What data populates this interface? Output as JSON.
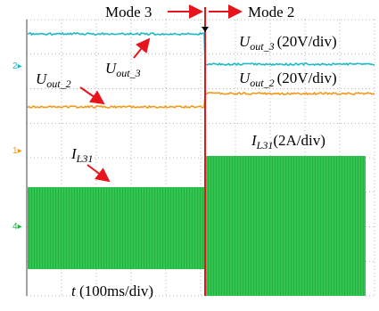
{
  "header": {
    "mode_from": "Mode 3",
    "mode_to": "Mode 2"
  },
  "channels": [
    "2",
    "1",
    "4"
  ],
  "traces": [
    {
      "symbol": "U",
      "subscript": "out_3",
      "scale": "(20V/div)"
    },
    {
      "symbol": "U",
      "subscript": "out_2",
      "scale": "(20V/div)"
    },
    {
      "symbol": "I",
      "subscript": "L31",
      "scale": "(2A/div)"
    }
  ],
  "time_axis": {
    "symbol": "t",
    "scale": "(100ms/div)"
  }
}
